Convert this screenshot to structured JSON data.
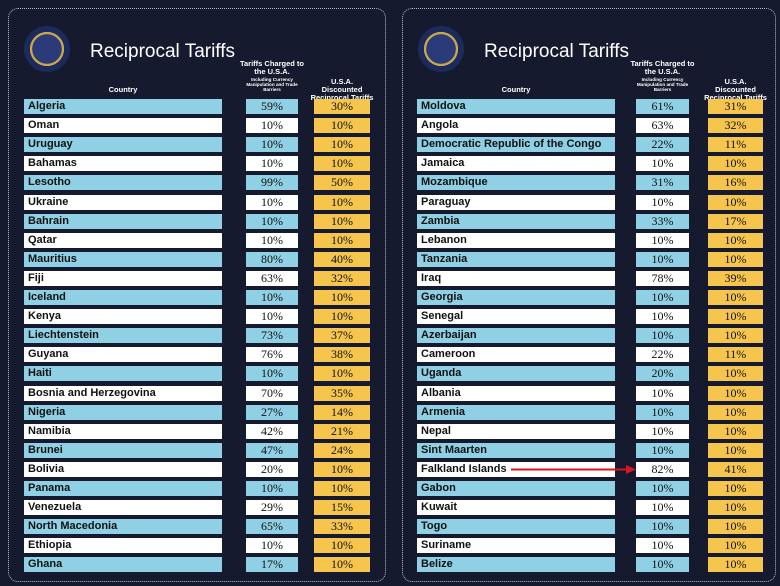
{
  "panels": [
    {
      "title": "Reciprocal Tariffs",
      "headers": {
        "country": "Country",
        "charged": "Tariffs Charged to the U.S.A.",
        "charged_note": "Including Currency Manipulation and Trade Barriers",
        "reciprocal": "U.S.A. Discounted Reciprocal Tariffs"
      },
      "rows": [
        [
          "Algeria",
          "59%",
          "30%"
        ],
        [
          "Oman",
          "10%",
          "10%"
        ],
        [
          "Uruguay",
          "10%",
          "10%"
        ],
        [
          "Bahamas",
          "10%",
          "10%"
        ],
        [
          "Lesotho",
          "99%",
          "50%"
        ],
        [
          "Ukraine",
          "10%",
          "10%"
        ],
        [
          "Bahrain",
          "10%",
          "10%"
        ],
        [
          "Qatar",
          "10%",
          "10%"
        ],
        [
          "Mauritius",
          "80%",
          "40%"
        ],
        [
          "Fiji",
          "63%",
          "32%"
        ],
        [
          "Iceland",
          "10%",
          "10%"
        ],
        [
          "Kenya",
          "10%",
          "10%"
        ],
        [
          "Liechtenstein",
          "73%",
          "37%"
        ],
        [
          "Guyana",
          "76%",
          "38%"
        ],
        [
          "Haiti",
          "10%",
          "10%"
        ],
        [
          "Bosnia and Herzegovina",
          "70%",
          "35%"
        ],
        [
          "Nigeria",
          "27%",
          "14%"
        ],
        [
          "Namibia",
          "42%",
          "21%"
        ],
        [
          "Brunei",
          "47%",
          "24%"
        ],
        [
          "Bolivia",
          "20%",
          "10%"
        ],
        [
          "Panama",
          "10%",
          "10%"
        ],
        [
          "Venezuela",
          "29%",
          "15%"
        ],
        [
          "North Macedonia",
          "65%",
          "33%"
        ],
        [
          "Ethiopia",
          "10%",
          "10%"
        ],
        [
          "Ghana",
          "17%",
          "10%"
        ]
      ]
    },
    {
      "title": "Reciprocal Tariffs",
      "headers": {
        "country": "Country",
        "charged": "Tariffs Charged to the U.S.A.",
        "charged_note": "Including Currency Manipulation and Trade Barriers",
        "reciprocal": "U.S.A. Discounted Reciprocal Tariffs"
      },
      "rows": [
        [
          "Moldova",
          "61%",
          "31%"
        ],
        [
          "Angola",
          "63%",
          "32%"
        ],
        [
          "Democratic Republic of the Congo",
          "22%",
          "11%"
        ],
        [
          "Jamaica",
          "10%",
          "10%"
        ],
        [
          "Mozambique",
          "31%",
          "16%"
        ],
        [
          "Paraguay",
          "10%",
          "10%"
        ],
        [
          "Zambia",
          "33%",
          "17%"
        ],
        [
          "Lebanon",
          "10%",
          "10%"
        ],
        [
          "Tanzania",
          "10%",
          "10%"
        ],
        [
          "Iraq",
          "78%",
          "39%"
        ],
        [
          "Georgia",
          "10%",
          "10%"
        ],
        [
          "Senegal",
          "10%",
          "10%"
        ],
        [
          "Azerbaijan",
          "10%",
          "10%"
        ],
        [
          "Cameroon",
          "22%",
          "11%"
        ],
        [
          "Uganda",
          "20%",
          "10%"
        ],
        [
          "Albania",
          "10%",
          "10%"
        ],
        [
          "Armenia",
          "10%",
          "10%"
        ],
        [
          "Nepal",
          "10%",
          "10%"
        ],
        [
          "Sint Maarten",
          "10%",
          "10%"
        ],
        [
          "Falkland Islands",
          "82%",
          "41%"
        ],
        [
          "Gabon",
          "10%",
          "10%"
        ],
        [
          "Kuwait",
          "10%",
          "10%"
        ],
        [
          "Togo",
          "10%",
          "10%"
        ],
        [
          "Suriname",
          "10%",
          "10%"
        ],
        [
          "Belize",
          "10%",
          "10%"
        ]
      ]
    }
  ]
}
